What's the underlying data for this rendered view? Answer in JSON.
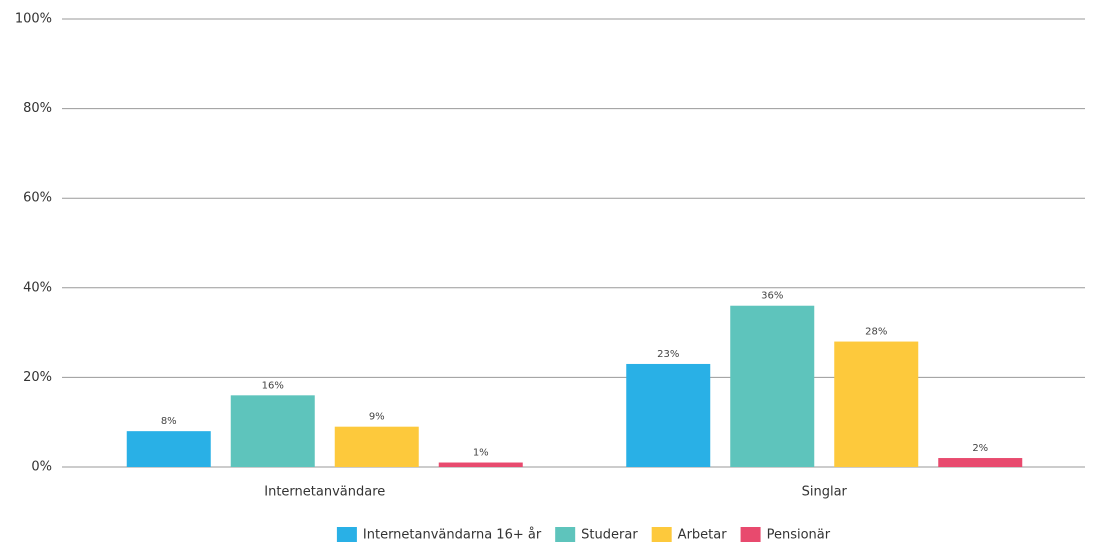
{
  "chart_data": {
    "type": "bar",
    "categories": [
      "Internetanvändare",
      "Singlar"
    ],
    "series": [
      {
        "name": "Internetanvändarna 16+ år",
        "color": "#29b0e6",
        "values": [
          8,
          23
        ],
        "value_labels": [
          "8%",
          "23%"
        ]
      },
      {
        "name": "Studerar",
        "color": "#5ec4bc",
        "values": [
          16,
          36
        ],
        "value_labels": [
          "16%",
          "36%"
        ]
      },
      {
        "name": "Arbetar",
        "color": "#fdc93c",
        "values": [
          9,
          28
        ],
        "value_labels": [
          "9%",
          "28%"
        ]
      },
      {
        "name": "Pensionär",
        "color": "#e84a6e",
        "values": [
          1,
          2
        ],
        "value_labels": [
          "1%",
          "2%"
        ]
      }
    ],
    "ylim": [
      0,
      100
    ],
    "yticks": [
      {
        "value": 0,
        "label": "0%"
      },
      {
        "value": 20,
        "label": "20%"
      },
      {
        "value": 40,
        "label": "40%"
      },
      {
        "value": 60,
        "label": "60%"
      },
      {
        "value": 80,
        "label": "80%"
      },
      {
        "value": 100,
        "label": "100%"
      }
    ],
    "grid": true,
    "legend": "bottom"
  }
}
